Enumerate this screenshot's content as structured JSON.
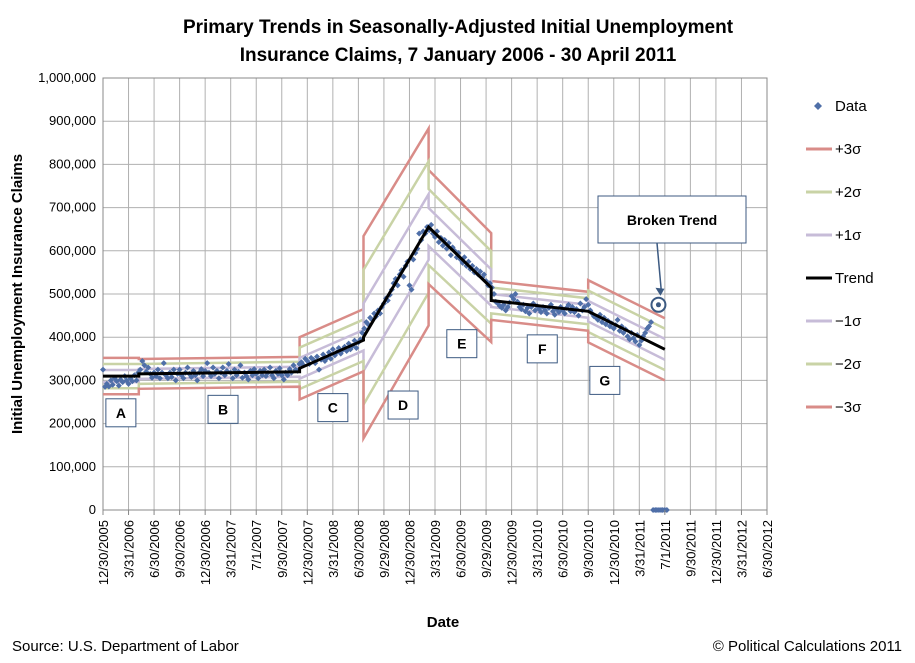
{
  "chart_data": {
    "type": "scatter",
    "title": "Primary Trends in Seasonally-Adjusted Initial Unemployment Insurance Claims, 7 January 2006 - 30 April 2011",
    "title_lines": [
      "Primary Trends in Seasonally-Adjusted Initial Unemployment",
      "Insurance Claims, 7 January 2006 - 30 April 2011"
    ],
    "xlabel": "Date",
    "ylabel": "Initial Unemployment Insurance Claims",
    "ylim": [
      0,
      1000000
    ],
    "y_ticks": [
      0,
      100000,
      200000,
      300000,
      400000,
      500000,
      600000,
      700000,
      800000,
      900000,
      1000000
    ],
    "y_tick_labels": [
      "0",
      "100,000",
      "200,000",
      "300,000",
      "400,000",
      "500,000",
      "600,000",
      "700,000",
      "800,000",
      "900,000",
      "1,000,000"
    ],
    "x_tick_labels": [
      "12/30/2005",
      "3/31/2006",
      "6/30/2006",
      "9/30/2006",
      "12/30/2006",
      "3/31/2007",
      "7/1/2007",
      "9/30/2007",
      "12/30/2007",
      "3/31/2008",
      "6/30/2008",
      "9/29/2008",
      "12/30/2008",
      "3/31/2009",
      "6/30/2009",
      "9/29/2009",
      "12/30/2009",
      "3/31/2010",
      "6/30/2010",
      "9/30/2010",
      "12/30/2010",
      "3/31/2011",
      "7/1/2011",
      "9/30/2011",
      "12/30/2011",
      "3/31/2012",
      "6/30/2012"
    ],
    "x_unit": "quarters since 12/30/2005",
    "xlim": [
      0,
      26
    ],
    "legend": {
      "position": "right",
      "entries": [
        {
          "label": "Data",
          "color": "#4F6FA8",
          "type": "marker"
        },
        {
          "label": "+3σ",
          "color": "#D98C88",
          "type": "line"
        },
        {
          "label": "+2σ",
          "color": "#C9D3A6",
          "type": "line"
        },
        {
          "label": "+1σ",
          "color": "#C7BCD8",
          "type": "line"
        },
        {
          "label": "Trend",
          "color": "#000000",
          "type": "line"
        },
        {
          "label": "−1σ",
          "color": "#C7BCD8",
          "type": "line"
        },
        {
          "label": "−2σ",
          "color": "#C9D3A6",
          "type": "line"
        },
        {
          "label": "−3σ",
          "color": "#D98C88",
          "type": "line"
        }
      ]
    },
    "trend_segments": [
      {
        "name": "A",
        "x": [
          0.0,
          1.4
        ],
        "trend": [
          310000,
          310000
        ],
        "sigma": [
          14000,
          14000
        ]
      },
      {
        "name": "B",
        "x": [
          1.4,
          7.7
        ],
        "trend": [
          315000,
          320000
        ],
        "sigma": [
          11500,
          11500
        ]
      },
      {
        "name": "C",
        "x": [
          7.7,
          10.2
        ],
        "trend": [
          328000,
          393000
        ],
        "sigma": [
          24000,
          24000
        ]
      },
      {
        "name": "D",
        "x": [
          10.2,
          12.75
        ],
        "trend": [
          400000,
          655000
        ],
        "sigma": [
          78000,
          76000
        ]
      },
      {
        "name": "E",
        "x": [
          12.75,
          15.2
        ],
        "trend": [
          655000,
          515000
        ],
        "sigma": [
          44000,
          42000
        ]
      },
      {
        "name": "F",
        "x": [
          15.2,
          19.0
        ],
        "trend": [
          485000,
          460000
        ],
        "sigma": [
          15000,
          15000
        ]
      },
      {
        "name": "G",
        "x": [
          19.0,
          22.0
        ],
        "trend": [
          460000,
          372000
        ],
        "sigma": [
          24000,
          24000
        ]
      }
    ],
    "data_points": [
      [
        0.0,
        325000
      ],
      [
        0.08,
        285000
      ],
      [
        0.15,
        292000
      ],
      [
        0.23,
        286000
      ],
      [
        0.31,
        300000
      ],
      [
        0.38,
        290000
      ],
      [
        0.46,
        305000
      ],
      [
        0.54,
        298000
      ],
      [
        0.62,
        288000
      ],
      [
        0.69,
        302000
      ],
      [
        0.77,
        296000
      ],
      [
        0.85,
        310000
      ],
      [
        0.92,
        300000
      ],
      [
        1.0,
        292000
      ],
      [
        1.08,
        304000
      ],
      [
        1.15,
        298000
      ],
      [
        1.23,
        312000
      ],
      [
        1.31,
        300000
      ],
      [
        1.38,
        318000
      ],
      [
        1.46,
        325000
      ],
      [
        1.54,
        345000
      ],
      [
        1.62,
        335000
      ],
      [
        1.69,
        320000
      ],
      [
        1.77,
        330000
      ],
      [
        1.85,
        315000
      ],
      [
        1.92,
        306000
      ],
      [
        2.0,
        318000
      ],
      [
        2.08,
        310000
      ],
      [
        2.15,
        325000
      ],
      [
        2.23,
        305000
      ],
      [
        2.31,
        318000
      ],
      [
        2.38,
        340000
      ],
      [
        2.46,
        312000
      ],
      [
        2.54,
        305000
      ],
      [
        2.62,
        318000
      ],
      [
        2.69,
        308000
      ],
      [
        2.77,
        325000
      ],
      [
        2.85,
        300000
      ],
      [
        2.92,
        315000
      ],
      [
        3.0,
        325000
      ],
      [
        3.08,
        312000
      ],
      [
        3.15,
        305000
      ],
      [
        3.23,
        318000
      ],
      [
        3.31,
        330000
      ],
      [
        3.38,
        315000
      ],
      [
        3.46,
        308000
      ],
      [
        3.54,
        322000
      ],
      [
        3.62,
        312000
      ],
      [
        3.69,
        300000
      ],
      [
        3.77,
        318000
      ],
      [
        3.85,
        326000
      ],
      [
        3.92,
        310000
      ],
      [
        4.0,
        322000
      ],
      [
        4.08,
        340000
      ],
      [
        4.15,
        318000
      ],
      [
        4.23,
        310000
      ],
      [
        4.31,
        330000
      ],
      [
        4.38,
        315000
      ],
      [
        4.46,
        322000
      ],
      [
        4.54,
        305000
      ],
      [
        4.62,
        318000
      ],
      [
        4.69,
        330000
      ],
      [
        4.77,
        312000
      ],
      [
        4.85,
        322000
      ],
      [
        4.92,
        338000
      ],
      [
        5.0,
        318000
      ],
      [
        5.08,
        305000
      ],
      [
        5.15,
        325000
      ],
      [
        5.23,
        312000
      ],
      [
        5.31,
        320000
      ],
      [
        5.38,
        335000
      ],
      [
        5.46,
        306000
      ],
      [
        5.54,
        318000
      ],
      [
        5.62,
        310000
      ],
      [
        5.69,
        302000
      ],
      [
        5.77,
        322000
      ],
      [
        5.85,
        312000
      ],
      [
        5.92,
        326000
      ],
      [
        6.0,
        315000
      ],
      [
        6.08,
        305000
      ],
      [
        6.15,
        322000
      ],
      [
        6.23,
        312000
      ],
      [
        6.31,
        325000
      ],
      [
        6.38,
        310000
      ],
      [
        6.46,
        318000
      ],
      [
        6.54,
        330000
      ],
      [
        6.62,
        312000
      ],
      [
        6.69,
        305000
      ],
      [
        6.77,
        322000
      ],
      [
        6.85,
        315000
      ],
      [
        6.92,
        328000
      ],
      [
        7.0,
        312000
      ],
      [
        7.08,
        302000
      ],
      [
        7.15,
        318000
      ],
      [
        7.23,
        312000
      ],
      [
        7.31,
        326000
      ],
      [
        7.38,
        318000
      ],
      [
        7.46,
        335000
      ],
      [
        7.54,
        325000
      ],
      [
        7.62,
        322000
      ],
      [
        7.69,
        338000
      ],
      [
        7.77,
        342000
      ],
      [
        7.85,
        335000
      ],
      [
        7.92,
        350000
      ],
      [
        8.0,
        345000
      ],
      [
        8.08,
        338000
      ],
      [
        8.15,
        352000
      ],
      [
        8.23,
        348000
      ],
      [
        8.31,
        340000
      ],
      [
        8.38,
        355000
      ],
      [
        8.46,
        325000
      ],
      [
        8.54,
        348000
      ],
      [
        8.62,
        360000
      ],
      [
        8.69,
        345000
      ],
      [
        8.77,
        352000
      ],
      [
        8.85,
        365000
      ],
      [
        8.92,
        350000
      ],
      [
        9.0,
        372000
      ],
      [
        9.08,
        358000
      ],
      [
        9.15,
        365000
      ],
      [
        9.23,
        375000
      ],
      [
        9.31,
        362000
      ],
      [
        9.38,
        370000
      ],
      [
        9.46,
        378000
      ],
      [
        9.54,
        368000
      ],
      [
        9.62,
        385000
      ],
      [
        9.69,
        372000
      ],
      [
        9.77,
        380000
      ],
      [
        9.85,
        392000
      ],
      [
        9.92,
        375000
      ],
      [
        10.0,
        388000
      ],
      [
        10.08,
        395000
      ],
      [
        10.15,
        410000
      ],
      [
        10.23,
        420000
      ],
      [
        10.31,
        435000
      ],
      [
        10.38,
        430000
      ],
      [
        10.46,
        445000
      ],
      [
        10.54,
        440000
      ],
      [
        10.62,
        455000
      ],
      [
        10.69,
        448000
      ],
      [
        10.77,
        462000
      ],
      [
        10.85,
        455000
      ],
      [
        10.92,
        470000
      ],
      [
        11.0,
        478000
      ],
      [
        11.08,
        490000
      ],
      [
        11.15,
        485000
      ],
      [
        11.23,
        498000
      ],
      [
        11.31,
        510000
      ],
      [
        11.38,
        525000
      ],
      [
        11.46,
        535000
      ],
      [
        11.54,
        520000
      ],
      [
        11.62,
        545000
      ],
      [
        11.69,
        555000
      ],
      [
        11.77,
        540000
      ],
      [
        11.85,
        565000
      ],
      [
        11.92,
        575000
      ],
      [
        12.0,
        520000
      ],
      [
        12.08,
        510000
      ],
      [
        12.15,
        580000
      ],
      [
        12.23,
        595000
      ],
      [
        12.31,
        605000
      ],
      [
        12.38,
        640000
      ],
      [
        12.46,
        625000
      ],
      [
        12.54,
        645000
      ],
      [
        12.62,
        640000
      ],
      [
        12.69,
        655000
      ],
      [
        12.77,
        648000
      ],
      [
        12.85,
        660000
      ],
      [
        12.92,
        640000
      ],
      [
        13.0,
        632000
      ],
      [
        13.08,
        645000
      ],
      [
        13.15,
        620000
      ],
      [
        13.23,
        630000
      ],
      [
        13.31,
        612000
      ],
      [
        13.38,
        625000
      ],
      [
        13.46,
        605000
      ],
      [
        13.54,
        618000
      ],
      [
        13.62,
        590000
      ],
      [
        13.69,
        608000
      ],
      [
        13.77,
        600000
      ],
      [
        13.85,
        585000
      ],
      [
        13.92,
        595000
      ],
      [
        14.0,
        580000
      ],
      [
        14.08,
        572000
      ],
      [
        14.15,
        585000
      ],
      [
        14.23,
        565000
      ],
      [
        14.31,
        575000
      ],
      [
        14.38,
        558000
      ],
      [
        14.46,
        565000
      ],
      [
        14.54,
        550000
      ],
      [
        14.62,
        558000
      ],
      [
        14.69,
        545000
      ],
      [
        14.77,
        552000
      ],
      [
        14.85,
        538000
      ],
      [
        14.92,
        545000
      ],
      [
        15.0,
        530000
      ],
      [
        15.08,
        520000
      ],
      [
        15.15,
        525000
      ],
      [
        15.23,
        515000
      ],
      [
        15.31,
        500000
      ],
      [
        15.38,
        482000
      ],
      [
        15.46,
        478000
      ],
      [
        15.54,
        472000
      ],
      [
        15.62,
        468000
      ],
      [
        15.69,
        475000
      ],
      [
        15.77,
        462000
      ],
      [
        15.85,
        470000
      ],
      [
        15.92,
        480000
      ],
      [
        16.0,
        495000
      ],
      [
        16.08,
        488000
      ],
      [
        16.15,
        500000
      ],
      [
        16.23,
        482000
      ],
      [
        16.31,
        470000
      ],
      [
        16.38,
        465000
      ],
      [
        16.46,
        475000
      ],
      [
        16.54,
        460000
      ],
      [
        16.62,
        468000
      ],
      [
        16.69,
        455000
      ],
      [
        16.77,
        470000
      ],
      [
        16.85,
        478000
      ],
      [
        16.92,
        462000
      ],
      [
        17.0,
        472000
      ],
      [
        17.08,
        465000
      ],
      [
        17.15,
        458000
      ],
      [
        17.23,
        470000
      ],
      [
        17.31,
        462000
      ],
      [
        17.38,
        455000
      ],
      [
        17.46,
        468000
      ],
      [
        17.54,
        475000
      ],
      [
        17.62,
        460000
      ],
      [
        17.69,
        452000
      ],
      [
        17.77,
        465000
      ],
      [
        17.85,
        458000
      ],
      [
        17.92,
        470000
      ],
      [
        18.0,
        462000
      ],
      [
        18.08,
        455000
      ],
      [
        18.15,
        468000
      ],
      [
        18.23,
        475000
      ],
      [
        18.31,
        460000
      ],
      [
        18.38,
        470000
      ],
      [
        18.46,
        458000
      ],
      [
        18.54,
        465000
      ],
      [
        18.62,
        450000
      ],
      [
        18.69,
        478000
      ],
      [
        18.77,
        462000
      ],
      [
        18.85,
        470000
      ],
      [
        18.92,
        488000
      ],
      [
        19.0,
        475000
      ],
      [
        19.08,
        462000
      ],
      [
        19.15,
        455000
      ],
      [
        19.23,
        448000
      ],
      [
        19.31,
        445000
      ],
      [
        19.38,
        440000
      ],
      [
        19.46,
        452000
      ],
      [
        19.54,
        435000
      ],
      [
        19.62,
        445000
      ],
      [
        19.69,
        430000
      ],
      [
        19.77,
        438000
      ],
      [
        19.85,
        425000
      ],
      [
        19.92,
        432000
      ],
      [
        20.0,
        420000
      ],
      [
        20.08,
        428000
      ],
      [
        20.15,
        440000
      ],
      [
        20.23,
        415000
      ],
      [
        20.31,
        425000
      ],
      [
        20.38,
        410000
      ],
      [
        20.46,
        418000
      ],
      [
        20.54,
        402000
      ],
      [
        20.62,
        395000
      ],
      [
        20.69,
        410000
      ],
      [
        20.77,
        398000
      ],
      [
        20.85,
        390000
      ],
      [
        20.92,
        405000
      ],
      [
        21.0,
        382000
      ],
      [
        21.08,
        392000
      ],
      [
        21.15,
        402000
      ],
      [
        21.23,
        410000
      ],
      [
        21.31,
        420000
      ],
      [
        21.38,
        425000
      ],
      [
        21.46,
        435000
      ],
      [
        21.54,
        0
      ],
      [
        21.62,
        0
      ],
      [
        21.69,
        0
      ],
      [
        21.77,
        0
      ],
      [
        21.85,
        0
      ],
      [
        21.92,
        0
      ],
      [
        22.0,
        0
      ],
      [
        22.08,
        0
      ]
    ],
    "annotations": [
      {
        "label": "A",
        "x": 0.7,
        "y": 225000
      },
      {
        "label": "B",
        "x": 4.7,
        "y": 233000
      },
      {
        "label": "C",
        "x": 9.0,
        "y": 237000
      },
      {
        "label": "D",
        "x": 11.75,
        "y": 243000
      },
      {
        "label": "E",
        "x": 14.05,
        "y": 385000
      },
      {
        "label": "F",
        "x": 17.2,
        "y": 373000
      },
      {
        "label": "G",
        "x": 19.65,
        "y": 300000
      }
    ],
    "callout": {
      "label": "Broken Trend",
      "target_x": 21.75,
      "target_y": 475000
    }
  },
  "footer": {
    "source": "Source: U.S. Department of Labor",
    "copyright": "© Political Calculations 2011"
  }
}
